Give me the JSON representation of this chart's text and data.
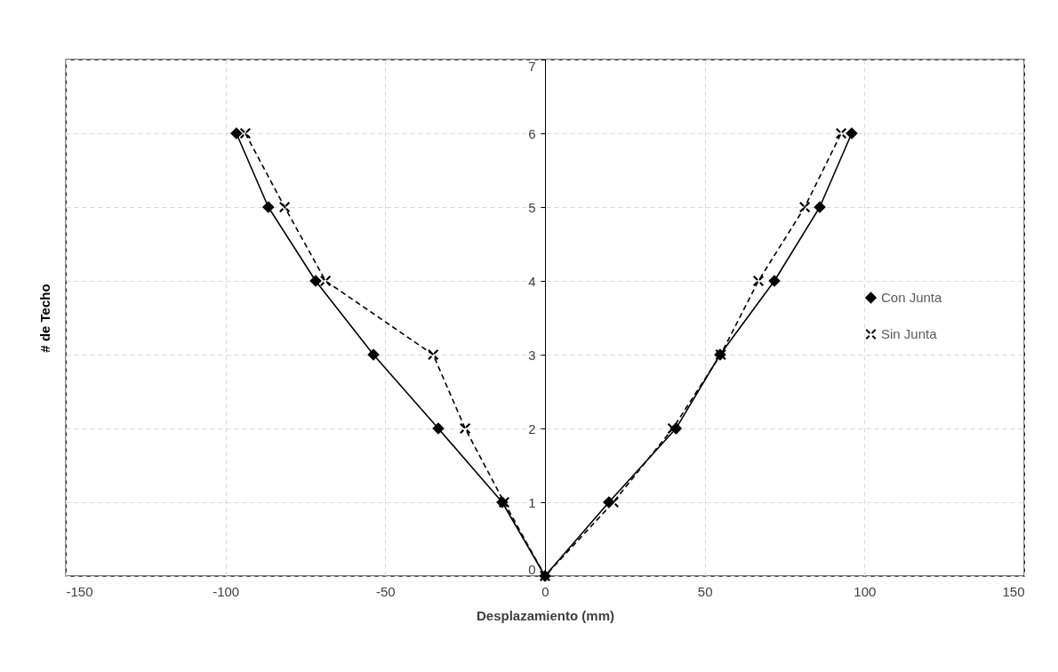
{
  "chart_data": {
    "type": "line",
    "xlabel": "Desplazamiento (mm)",
    "ylabel": "# de Techo",
    "xlim": [
      -150,
      150
    ],
    "xticks": [
      -150,
      -100,
      -50,
      0,
      50,
      100,
      150
    ],
    "ylim": [
      0,
      7
    ],
    "yticks": [
      0,
      1,
      2,
      3,
      4,
      5,
      6,
      7
    ],
    "grid": true,
    "legend": "right",
    "series": [
      {
        "name": "Con Junta",
        "color": "#000000",
        "marker": "diamond",
        "line_style": "solid",
        "x": [
          -96.6,
          -86.6,
          -71.8,
          -53.7,
          -33.4,
          -13.4,
          0,
          20,
          41,
          54.8,
          71.8,
          86,
          96
        ],
        "values": [
          6,
          5,
          4,
          3,
          2,
          1,
          0,
          1,
          2,
          3,
          4,
          5,
          6
        ]
      },
      {
        "name": "Sin Junta",
        "color": "#000000",
        "marker": "cross",
        "line_style": "dashed",
        "x": [
          -93.8,
          -81.5,
          -68.7,
          -35,
          -25,
          -12.8,
          0,
          21.4,
          40,
          55,
          66.8,
          81.3,
          92.7
        ],
        "values": [
          6,
          5,
          4,
          3,
          2,
          1,
          0,
          1,
          2,
          3,
          4,
          5,
          6
        ]
      }
    ]
  }
}
